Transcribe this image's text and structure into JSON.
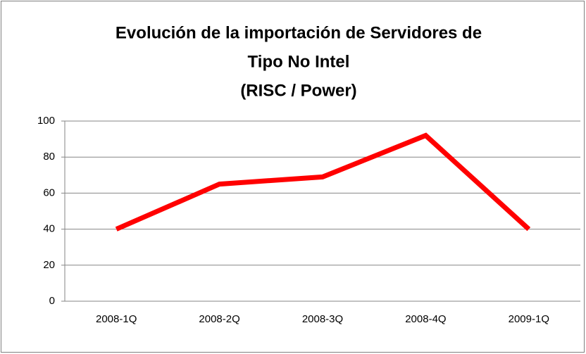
{
  "chart_data": {
    "type": "line",
    "title": [
      "Evolución de la importación de Servidores de",
      "Tipo No Intel",
      "(RISC / Power)"
    ],
    "categories": [
      "2008-1Q",
      "2008-2Q",
      "2008-3Q",
      "2008-4Q",
      "2009-1Q"
    ],
    "values": [
      40,
      65,
      69,
      92,
      40
    ],
    "color": "#ff0000",
    "ylim": [
      0,
      100
    ],
    "yticks": [
      0,
      20,
      40,
      60,
      80,
      100
    ],
    "grid": true
  }
}
